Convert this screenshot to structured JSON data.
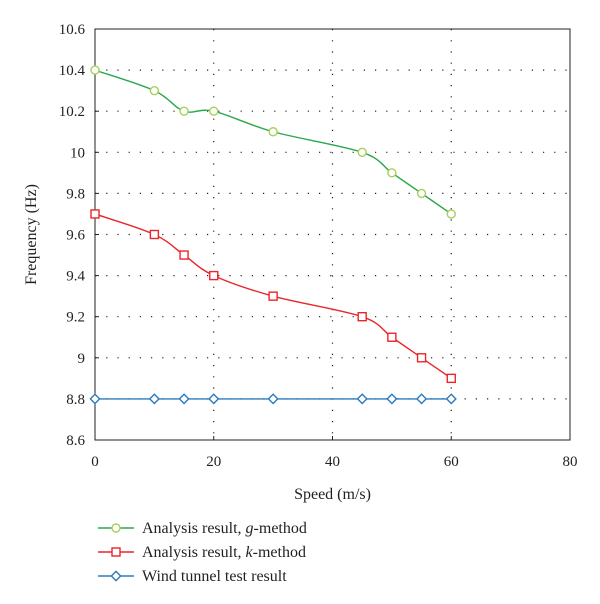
{
  "chart_data": {
    "type": "line",
    "title": "",
    "xlabel": "Speed (m/s)",
    "ylabel": "Frequency (Hz)",
    "xlim": [
      0,
      80
    ],
    "ylim": [
      8.6,
      10.6
    ],
    "xticks": [
      "0",
      "20",
      "40",
      "60",
      "80"
    ],
    "yticks": [
      "8.6",
      "8.8",
      "9",
      "9.2",
      "9.4",
      "9.6",
      "9.8",
      "10",
      "10.2",
      "10.4",
      "10.6"
    ],
    "grid": true,
    "legend_position": "bottom-left",
    "series": [
      {
        "name_parts": [
          "Analysis result, ",
          "g",
          "-method"
        ],
        "color": "#2aa84a",
        "marker": "circle",
        "marker_fill": "#ffffff",
        "marker_stroke": "#a6d05b",
        "x": [
          0,
          10,
          15,
          20,
          30,
          45,
          50,
          55,
          60
        ],
        "y": [
          10.4,
          10.3,
          10.2,
          10.2,
          10.1,
          10.0,
          9.9,
          9.8,
          9.7
        ]
      },
      {
        "name_parts": [
          "Analysis result, ",
          "k",
          "-method"
        ],
        "color": "#e8262c",
        "marker": "square",
        "marker_fill": "#ffffff",
        "marker_stroke": "#e8262c",
        "x": [
          0,
          10,
          15,
          20,
          30,
          45,
          50,
          55,
          60
        ],
        "y": [
          9.7,
          9.6,
          9.5,
          9.4,
          9.3,
          9.2,
          9.1,
          9.0,
          8.9
        ]
      },
      {
        "name_parts": [
          "Wind tunnel test result"
        ],
        "color": "#2b7bbd",
        "marker": "diamond",
        "marker_fill": "#ffffff",
        "marker_stroke": "#2b7bbd",
        "x": [
          0,
          10,
          15,
          20,
          30,
          45,
          50,
          55,
          60
        ],
        "y": [
          8.8,
          8.8,
          8.8,
          8.8,
          8.8,
          8.8,
          8.8,
          8.8,
          8.8
        ]
      }
    ]
  }
}
